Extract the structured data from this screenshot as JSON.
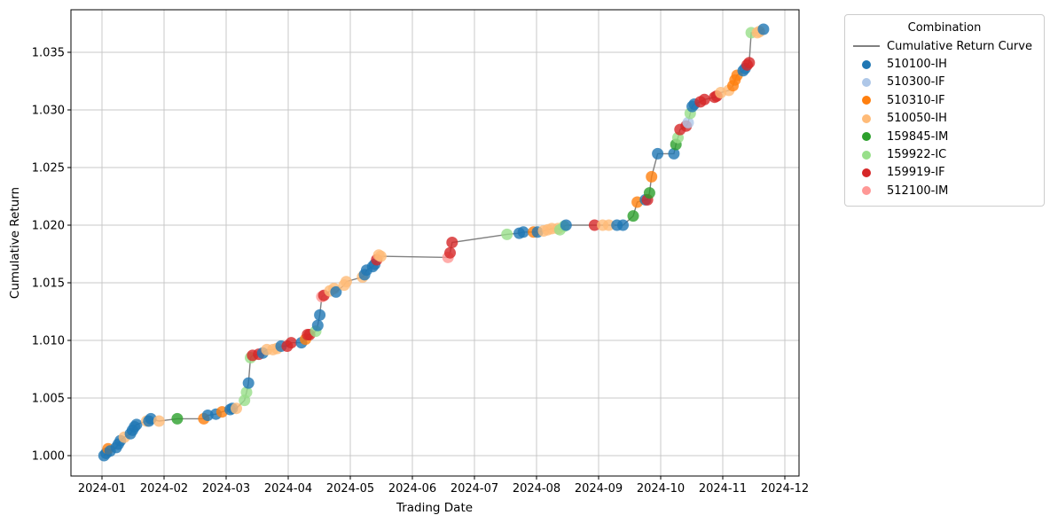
{
  "chart_data": {
    "type": "scatter",
    "title": "",
    "xlabel": "Trading Date",
    "ylabel": "Cumulative Return",
    "x_ticks": [
      "2024-01",
      "2024-02",
      "2024-03",
      "2024-04",
      "2024-05",
      "2024-06",
      "2024-07",
      "2024-08",
      "2024-09",
      "2024-10",
      "2024-11",
      "2024-12"
    ],
    "y_ticks": [
      "1.000",
      "1.005",
      "1.010",
      "1.015",
      "1.020",
      "1.025",
      "1.030",
      "1.035"
    ],
    "ylim": [
      0.9982,
      1.0387
    ],
    "grid": true,
    "legend": {
      "title": "Combination",
      "position": "outside-upper-right"
    },
    "line": {
      "label": "Cumulative Return Curve",
      "color": "#808080"
    },
    "combinations": [
      {
        "code": "510100-IH",
        "color": "#1f77b4"
      },
      {
        "code": "510300-IF",
        "color": "#aec7e8"
      },
      {
        "code": "510310-IF",
        "color": "#ff7f0e"
      },
      {
        "code": "510050-IH",
        "color": "#ffbb78"
      },
      {
        "code": "159845-IM",
        "color": "#2ca02c"
      },
      {
        "code": "159922-IC",
        "color": "#98df8a"
      },
      {
        "code": "159919-IF",
        "color": "#d62728"
      },
      {
        "code": "512100-IM",
        "color": "#ff9896"
      }
    ],
    "points": [
      {
        "d": "2024-01-02",
        "v": 1.0,
        "c": "510100-IH"
      },
      {
        "d": "2024-01-03",
        "v": 1.0002,
        "c": "510100-IH"
      },
      {
        "d": "2024-01-04",
        "v": 1.0006,
        "c": "510310-IF"
      },
      {
        "d": "2024-01-05",
        "v": 1.0004,
        "c": "510100-IH"
      },
      {
        "d": "2024-01-08",
        "v": 1.0007,
        "c": "510100-IH"
      },
      {
        "d": "2024-01-09",
        "v": 1.001,
        "c": "510100-IH"
      },
      {
        "d": "2024-01-10",
        "v": 1.0013,
        "c": "510100-IH"
      },
      {
        "d": "2024-01-12",
        "v": 1.0016,
        "c": "510050-IH"
      },
      {
        "d": "2024-01-15",
        "v": 1.0019,
        "c": "510100-IH"
      },
      {
        "d": "2024-01-16",
        "v": 1.0022,
        "c": "510100-IH"
      },
      {
        "d": "2024-01-17",
        "v": 1.0025,
        "c": "510100-IH"
      },
      {
        "d": "2024-01-18",
        "v": 1.0027,
        "c": "510100-IH"
      },
      {
        "d": "2024-01-23",
        "v": 1.003,
        "c": "510050-IH"
      },
      {
        "d": "2024-01-24",
        "v": 1.003,
        "c": "510100-IH"
      },
      {
        "d": "2024-01-25",
        "v": 1.0032,
        "c": "510100-IH"
      },
      {
        "d": "2024-01-29",
        "v": 1.003,
        "c": "510050-IH"
      },
      {
        "d": "2024-02-07",
        "v": 1.0032,
        "c": "159845-IM"
      },
      {
        "d": "2024-02-20",
        "v": 1.0032,
        "c": "510310-IF"
      },
      {
        "d": "2024-02-22",
        "v": 1.0035,
        "c": "510100-IH"
      },
      {
        "d": "2024-02-26",
        "v": 1.0036,
        "c": "510100-IH"
      },
      {
        "d": "2024-02-29",
        "v": 1.0038,
        "c": "510310-IF"
      },
      {
        "d": "2024-03-04",
        "v": 1.004,
        "c": "510100-IH"
      },
      {
        "d": "2024-03-05",
        "v": 1.0041,
        "c": "510100-IH"
      },
      {
        "d": "2024-03-07",
        "v": 1.0041,
        "c": "510050-IH"
      },
      {
        "d": "2024-03-11",
        "v": 1.0048,
        "c": "159922-IC"
      },
      {
        "d": "2024-03-12",
        "v": 1.0055,
        "c": "159922-IC"
      },
      {
        "d": "2024-03-13",
        "v": 1.0063,
        "c": "510100-IH"
      },
      {
        "d": "2024-03-14",
        "v": 1.0085,
        "c": "159922-IC"
      },
      {
        "d": "2024-03-15",
        "v": 1.0087,
        "c": "159919-IF"
      },
      {
        "d": "2024-03-18",
        "v": 1.0088,
        "c": "159919-IF"
      },
      {
        "d": "2024-03-20",
        "v": 1.0089,
        "c": "510100-IH"
      },
      {
        "d": "2024-03-22",
        "v": 1.0092,
        "c": "510050-IH"
      },
      {
        "d": "2024-03-25",
        "v": 1.0092,
        "c": "510050-IH"
      },
      {
        "d": "2024-03-27",
        "v": 1.0093,
        "c": "510050-IH"
      },
      {
        "d": "2024-03-29",
        "v": 1.0095,
        "c": "510100-IH"
      },
      {
        "d": "2024-04-01",
        "v": 1.0095,
        "c": "159919-IF"
      },
      {
        "d": "2024-04-03",
        "v": 1.0098,
        "c": "159919-IF"
      },
      {
        "d": "2024-04-08",
        "v": 1.0098,
        "c": "510100-IH"
      },
      {
        "d": "2024-04-10",
        "v": 1.0101,
        "c": "510310-IF"
      },
      {
        "d": "2024-04-11",
        "v": 1.0105,
        "c": "159919-IF"
      },
      {
        "d": "2024-04-12",
        "v": 1.0105,
        "c": "159919-IF"
      },
      {
        "d": "2024-04-15",
        "v": 1.0108,
        "c": "159922-IC"
      },
      {
        "d": "2024-04-16",
        "v": 1.0113,
        "c": "510100-IH"
      },
      {
        "d": "2024-04-17",
        "v": 1.0122,
        "c": "510100-IH"
      },
      {
        "d": "2024-04-18",
        "v": 1.0138,
        "c": "512100-IM"
      },
      {
        "d": "2024-04-19",
        "v": 1.0139,
        "c": "159919-IF"
      },
      {
        "d": "2024-04-22",
        "v": 1.0143,
        "c": "510050-IH"
      },
      {
        "d": "2024-04-24",
        "v": 1.0145,
        "c": "510050-IH"
      },
      {
        "d": "2024-04-25",
        "v": 1.0142,
        "c": "510100-IH"
      },
      {
        "d": "2024-04-29",
        "v": 1.0148,
        "c": "510050-IH"
      },
      {
        "d": "2024-04-30",
        "v": 1.0151,
        "c": "510050-IH"
      },
      {
        "d": "2024-05-08",
        "v": 1.0155,
        "c": "510050-IH"
      },
      {
        "d": "2024-05-09",
        "v": 1.0157,
        "c": "510100-IH"
      },
      {
        "d": "2024-05-10",
        "v": 1.0161,
        "c": "510100-IH"
      },
      {
        "d": "2024-05-13",
        "v": 1.0164,
        "c": "510100-IH"
      },
      {
        "d": "2024-05-14",
        "v": 1.0166,
        "c": "510100-IH"
      },
      {
        "d": "2024-05-15",
        "v": 1.017,
        "c": "159919-IF"
      },
      {
        "d": "2024-05-16",
        "v": 1.0174,
        "c": "510050-IH"
      },
      {
        "d": "2024-05-17",
        "v": 1.0173,
        "c": "510050-IH"
      },
      {
        "d": "2024-06-19",
        "v": 1.0172,
        "c": "512100-IM"
      },
      {
        "d": "2024-06-20",
        "v": 1.0176,
        "c": "159919-IF"
      },
      {
        "d": "2024-06-21",
        "v": 1.0185,
        "c": "159919-IF"
      },
      {
        "d": "2024-07-18",
        "v": 1.0192,
        "c": "159922-IC"
      },
      {
        "d": "2024-07-24",
        "v": 1.0193,
        "c": "510100-IH"
      },
      {
        "d": "2024-07-26",
        "v": 1.0194,
        "c": "510100-IH"
      },
      {
        "d": "2024-07-31",
        "v": 1.0194,
        "c": "510310-IF"
      },
      {
        "d": "2024-08-02",
        "v": 1.0194,
        "c": "510100-IH"
      },
      {
        "d": "2024-08-05",
        "v": 1.0195,
        "c": "510050-IH"
      },
      {
        "d": "2024-08-07",
        "v": 1.0196,
        "c": "510050-IH"
      },
      {
        "d": "2024-08-09",
        "v": 1.0197,
        "c": "510050-IH"
      },
      {
        "d": "2024-08-12",
        "v": 1.0197,
        "c": "510050-IH"
      },
      {
        "d": "2024-08-13",
        "v": 1.0196,
        "c": "159922-IC"
      },
      {
        "d": "2024-08-15",
        "v": 1.0199,
        "c": "159922-IC"
      },
      {
        "d": "2024-08-16",
        "v": 1.02,
        "c": "510100-IH"
      },
      {
        "d": "2024-08-30",
        "v": 1.02,
        "c": "159919-IF"
      },
      {
        "d": "2024-09-03",
        "v": 1.02,
        "c": "510050-IH"
      },
      {
        "d": "2024-09-06",
        "v": 1.02,
        "c": "510050-IH"
      },
      {
        "d": "2024-09-10",
        "v": 1.02,
        "c": "510100-IH"
      },
      {
        "d": "2024-09-13",
        "v": 1.02,
        "c": "510100-IH"
      },
      {
        "d": "2024-09-18",
        "v": 1.0208,
        "c": "159845-IM"
      },
      {
        "d": "2024-09-20",
        "v": 1.022,
        "c": "510310-IF"
      },
      {
        "d": "2024-09-24",
        "v": 1.0222,
        "c": "510100-IH"
      },
      {
        "d": "2024-09-25",
        "v": 1.0222,
        "c": "159919-IF"
      },
      {
        "d": "2024-09-26",
        "v": 1.0228,
        "c": "159845-IM"
      },
      {
        "d": "2024-09-27",
        "v": 1.0242,
        "c": "510310-IF"
      },
      {
        "d": "2024-09-30",
        "v": 1.0262,
        "c": "510100-IH"
      },
      {
        "d": "2024-10-08",
        "v": 1.0262,
        "c": "510100-IH"
      },
      {
        "d": "2024-10-09",
        "v": 1.027,
        "c": "159845-IM"
      },
      {
        "d": "2024-10-10",
        "v": 1.0276,
        "c": "159922-IC"
      },
      {
        "d": "2024-10-11",
        "v": 1.0283,
        "c": "159919-IF"
      },
      {
        "d": "2024-10-14",
        "v": 1.0286,
        "c": "159919-IF"
      },
      {
        "d": "2024-10-15",
        "v": 1.0289,
        "c": "510300-IF"
      },
      {
        "d": "2024-10-16",
        "v": 1.0297,
        "c": "159922-IC"
      },
      {
        "d": "2024-10-17",
        "v": 1.0303,
        "c": "510100-IH"
      },
      {
        "d": "2024-10-18",
        "v": 1.0305,
        "c": "510100-IH"
      },
      {
        "d": "2024-10-21",
        "v": 1.0307,
        "c": "159919-IF"
      },
      {
        "d": "2024-10-23",
        "v": 1.0309,
        "c": "159919-IF"
      },
      {
        "d": "2024-10-28",
        "v": 1.0311,
        "c": "159919-IF"
      },
      {
        "d": "2024-10-29",
        "v": 1.0312,
        "c": "159919-IF"
      },
      {
        "d": "2024-10-31",
        "v": 1.0315,
        "c": "510050-IH"
      },
      {
        "d": "2024-11-04",
        "v": 1.0317,
        "c": "510050-IH"
      },
      {
        "d": "2024-11-06",
        "v": 1.0321,
        "c": "510310-IF"
      },
      {
        "d": "2024-11-07",
        "v": 1.0326,
        "c": "510310-IF"
      },
      {
        "d": "2024-11-08",
        "v": 1.033,
        "c": "510310-IF"
      },
      {
        "d": "2024-11-11",
        "v": 1.0334,
        "c": "510100-IH"
      },
      {
        "d": "2024-11-12",
        "v": 1.0336,
        "c": "510100-IH"
      },
      {
        "d": "2024-11-13",
        "v": 1.0339,
        "c": "159919-IF"
      },
      {
        "d": "2024-11-14",
        "v": 1.0341,
        "c": "159919-IF"
      },
      {
        "d": "2024-11-15",
        "v": 1.0367,
        "c": "159922-IC"
      },
      {
        "d": "2024-11-18",
        "v": 1.0367,
        "c": "510050-IH"
      },
      {
        "d": "2024-11-19",
        "v": 1.0368,
        "c": "510050-IH"
      },
      {
        "d": "2024-11-21",
        "v": 1.037,
        "c": "510100-IH"
      }
    ]
  }
}
